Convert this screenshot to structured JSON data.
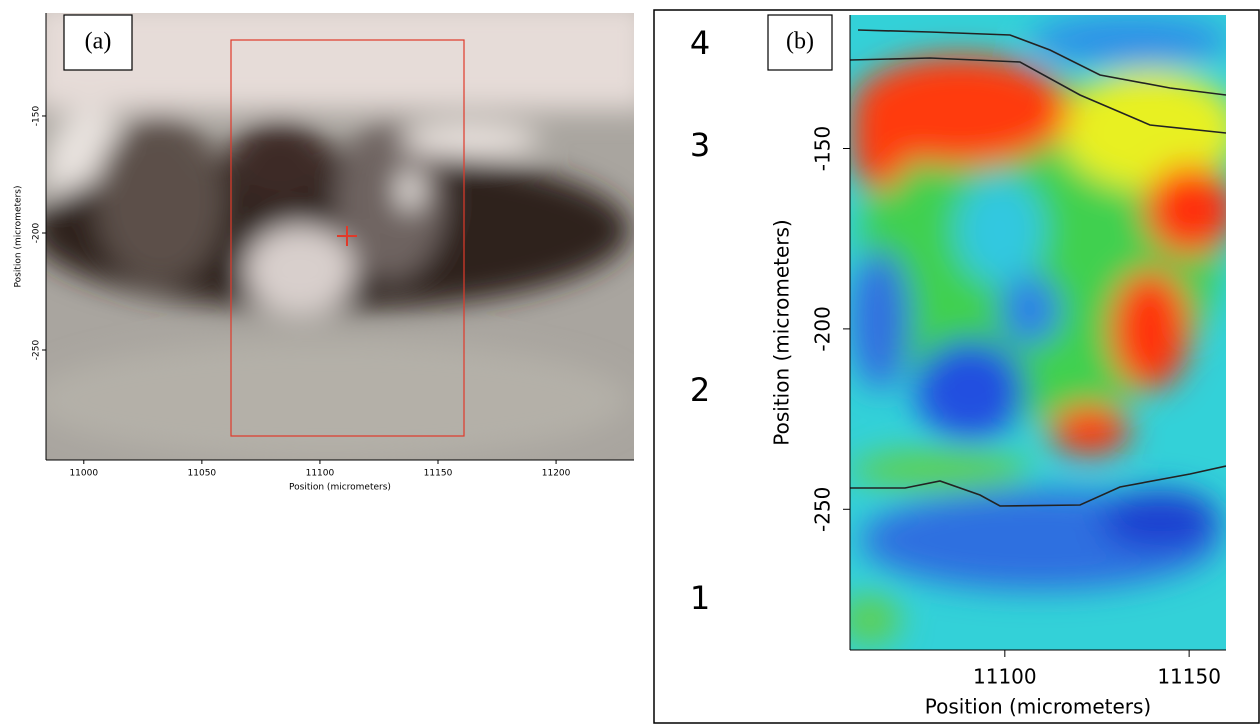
{
  "panels": [
    {
      "label": "(a)",
      "x_axis": {
        "label": "Position (micrometers)",
        "lim": [
          10984,
          11233
        ],
        "ticks": [
          11000,
          11050,
          11100,
          11150,
          11200
        ]
      },
      "y_axis": {
        "label": "Position (micrometers)",
        "lim": [
          -297,
          -106
        ],
        "ticks": [
          -150,
          -200,
          -250
        ]
      }
    },
    {
      "label": "(b)",
      "x_axis": {
        "label": "Position (micrometers)",
        "lim": [
          11058,
          11160
        ],
        "ticks": [
          11100,
          11150
        ]
      },
      "y_axis": {
        "label": "Position (micrometers)",
        "lim": [
          -289,
          -113
        ],
        "ticks": [
          -150,
          -200,
          -250
        ]
      }
    }
  ],
  "layers": [
    "4",
    "3",
    "2",
    "1"
  ]
}
